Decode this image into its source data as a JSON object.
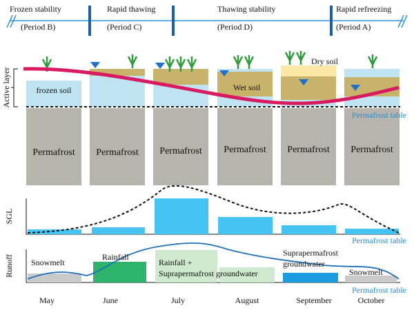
{
  "periods": [
    {
      "name": "Frozen stability",
      "period": "(Period B)"
    },
    {
      "name": "Rapid thawing",
      "period": "(Period C)"
    },
    {
      "name": "Thawing stability",
      "period": "(Period D)"
    },
    {
      "name": "Rapid refreezing",
      "period": "(Period A)"
    }
  ],
  "soil": {
    "active_layer": "Active layer",
    "frozen": "frozen soil",
    "wet": "Wet soil",
    "dry": "Dry soil",
    "permafrost": [
      "Permafrost",
      "Permafrost",
      "Permafrost",
      "Permafrost",
      "Permafrost",
      "Permafrost"
    ],
    "permafrost_table": "Permafrost table"
  },
  "sgl": {
    "label": "SGL",
    "permafrost_table": "Permafrost table"
  },
  "runoff": {
    "label": "Runoff",
    "permafrost_table": "Permafrost table",
    "sources": [
      "Snowmelt",
      "Rainfall",
      "Rainfall +",
      "Suprapermafrost groundwater",
      "Suprapermafrost",
      "groundwater",
      "Snowmelt"
    ]
  },
  "months": [
    "May",
    "June",
    "July",
    "August",
    "September",
    "October"
  ]
}
